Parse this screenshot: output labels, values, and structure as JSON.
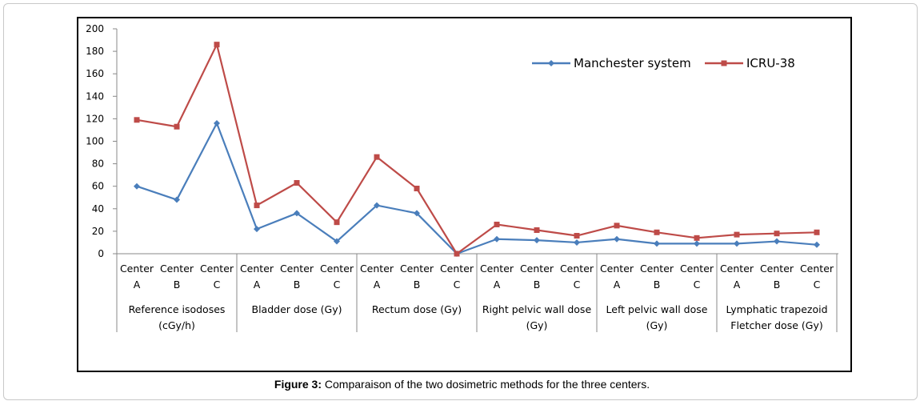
{
  "figure": {
    "caption_label": "Figure 3:",
    "caption_text": " Comparaison of the two dosimetric  methods for the three centers."
  },
  "chart_data": {
    "type": "line",
    "ylim": [
      0,
      200
    ],
    "yticks": [
      0,
      20,
      40,
      60,
      80,
      100,
      120,
      140,
      160,
      180,
      200
    ],
    "grid": false,
    "legend_position": "top-right",
    "groups": [
      {
        "label_lines": [
          "Reference isodoses",
          "(cGy/h)"
        ],
        "categories": [
          [
            "Center",
            "A"
          ],
          [
            "Center",
            "B"
          ],
          [
            "Center",
            "C"
          ]
        ]
      },
      {
        "label_lines": [
          "Bladder dose (Gy)"
        ],
        "categories": [
          [
            "Center",
            "A"
          ],
          [
            "Center",
            "B"
          ],
          [
            "Center",
            "C"
          ]
        ]
      },
      {
        "label_lines": [
          "Rectum dose (Gy)"
        ],
        "categories": [
          [
            "Center",
            "A"
          ],
          [
            "Center",
            "B"
          ],
          [
            "Center",
            "C"
          ]
        ]
      },
      {
        "label_lines": [
          "Right pelvic wall dose",
          "(Gy)"
        ],
        "categories": [
          [
            "Center",
            "A"
          ],
          [
            "Center",
            "B"
          ],
          [
            "Center",
            "C"
          ]
        ]
      },
      {
        "label_lines": [
          "Left pelvic wall dose",
          "(Gy)"
        ],
        "categories": [
          [
            "Center",
            "A"
          ],
          [
            "Center",
            "B"
          ],
          [
            "Center",
            "C"
          ]
        ]
      },
      {
        "label_lines": [
          "Lymphatic trapezoid",
          "Fletcher dose (Gy)"
        ],
        "categories": [
          [
            "Center",
            "A"
          ],
          [
            "Center",
            "B"
          ],
          [
            "Center",
            "C"
          ]
        ]
      }
    ],
    "series": [
      {
        "name": "Manchester system",
        "color": "#4a7ebb",
        "marker": "diamond",
        "values": [
          60,
          48,
          116,
          22,
          36,
          11,
          43,
          36,
          0,
          13,
          12,
          10,
          13,
          9,
          9,
          9,
          11,
          8
        ]
      },
      {
        "name": "ICRU-38",
        "color": "#be4b48",
        "marker": "square",
        "values": [
          119,
          113,
          186,
          43,
          63,
          28,
          86,
          58,
          0,
          26,
          21,
          16,
          25,
          19,
          14,
          17,
          18,
          19
        ]
      }
    ]
  }
}
